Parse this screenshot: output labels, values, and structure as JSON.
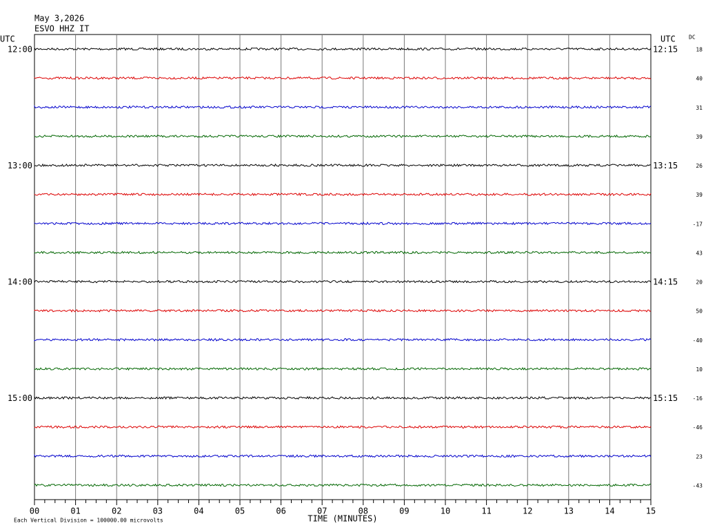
{
  "header": {
    "date": "May 3,2026",
    "station": "ESVO HHZ IT"
  },
  "left_axis": {
    "unit": "UTC",
    "labels": [
      "12:00",
      "13:00",
      "14:00",
      "15:00"
    ]
  },
  "right_axis": {
    "unit": "UTC",
    "labels": [
      "12:15",
      "13:15",
      "14:15",
      "15:15"
    ]
  },
  "dc": {
    "title": "DC",
    "values": [
      18,
      40,
      31,
      39,
      26,
      39,
      -17,
      43,
      20,
      50,
      -40,
      10,
      -16,
      -46,
      23,
      -43
    ]
  },
  "x_axis": {
    "ticks": [
      "00",
      "01",
      "02",
      "03",
      "04",
      "05",
      "06",
      "07",
      "08",
      "09",
      "10",
      "11",
      "12",
      "13",
      "14",
      "15"
    ],
    "title": "TIME (MINUTES)"
  },
  "footer": {
    "note": "Each Vertical Division = 100000.00 microvolts"
  }
}
